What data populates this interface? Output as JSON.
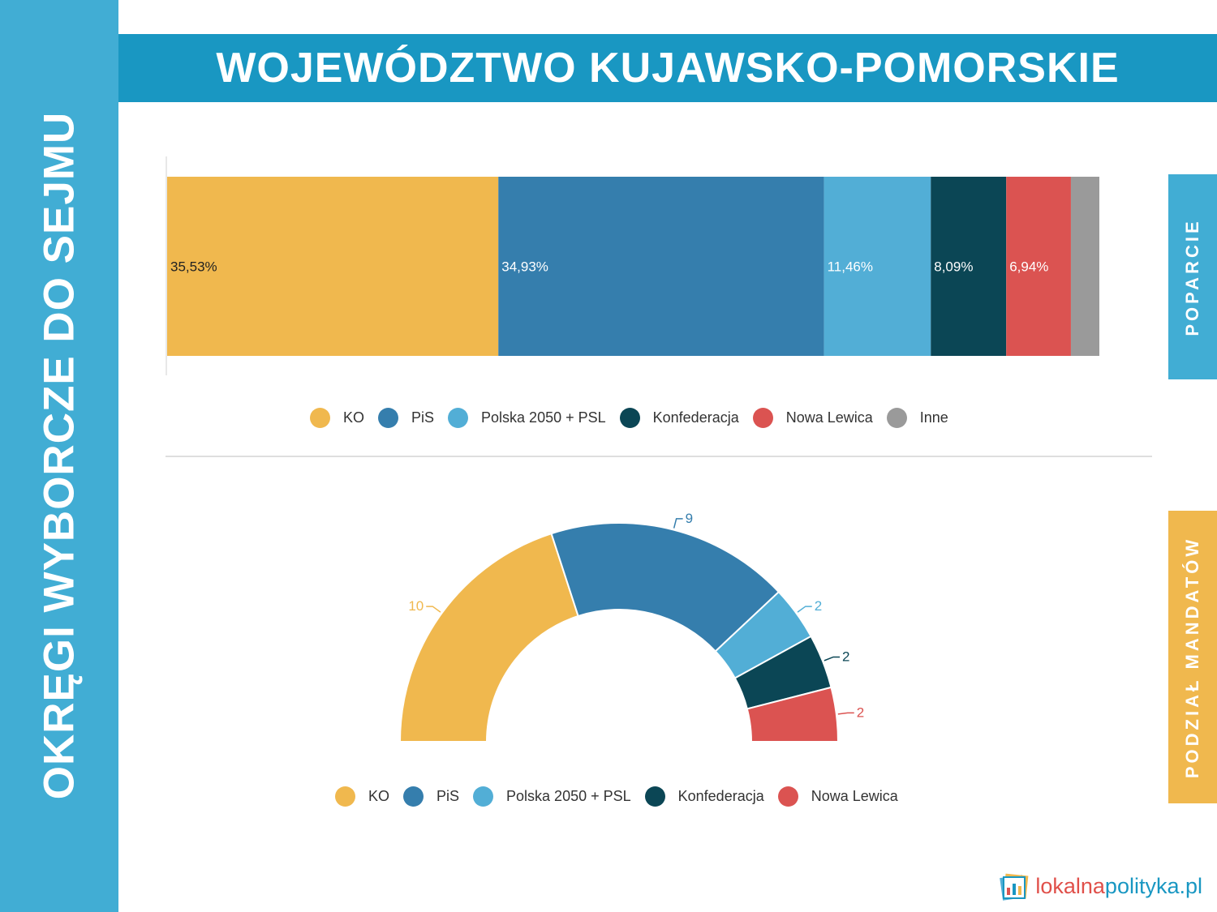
{
  "sidebar": {
    "title": "OKRĘGI WYBORCZE DO SEJMU"
  },
  "header": {
    "title": "WOJEWÓDZTWO KUJAWSKO-POMORSKIE"
  },
  "tabs": {
    "support": "POPARCIE",
    "seats": "PODZIAŁ MANDATÓW"
  },
  "colors": {
    "KO": "#f0b84e",
    "PiS": "#357ead",
    "Polska 2050 + PSL": "#52aed6",
    "Konfederacja": "#0b4655",
    "Nowa Lewica": "#db5351",
    "Inne": "#9a9a9a"
  },
  "chart_data": [
    {
      "type": "bar",
      "orientation": "horizontal-stacked",
      "series": [
        {
          "name": "KO",
          "value": 35.53,
          "label": "35,53%"
        },
        {
          "name": "PiS",
          "value": 34.93,
          "label": "34,93%"
        },
        {
          "name": "Polska 2050 + PSL",
          "value": 11.46,
          "label": "11,46%"
        },
        {
          "name": "Konfederacja",
          "value": 8.09,
          "label": "8,09%"
        },
        {
          "name": "Nowa Lewica",
          "value": 6.94,
          "label": "6,94%"
        },
        {
          "name": "Inne",
          "value": 3.05,
          "label": ""
        }
      ],
      "legend": [
        "KO",
        "PiS",
        "Polska 2050 + PSL",
        "Konfederacja",
        "Nowa Lewica",
        "Inne"
      ],
      "legend_position": "bottom"
    },
    {
      "type": "pie",
      "variant": "semicircle-donut",
      "series": [
        {
          "name": "KO",
          "value": 10,
          "label": "10"
        },
        {
          "name": "PiS",
          "value": 9,
          "label": "9"
        },
        {
          "name": "Polska 2050 + PSL",
          "value": 2,
          "label": "2"
        },
        {
          "name": "Konfederacja",
          "value": 2,
          "label": "2"
        },
        {
          "name": "Nowa Lewica",
          "value": 2,
          "label": "2"
        }
      ],
      "legend": [
        "KO",
        "PiS",
        "Polska 2050 + PSL",
        "Konfederacja",
        "Nowa Lewica"
      ],
      "legend_position": "bottom"
    }
  ],
  "logo": {
    "part1": "lokalna",
    "part2": "polityka",
    "part3": ".pl"
  }
}
